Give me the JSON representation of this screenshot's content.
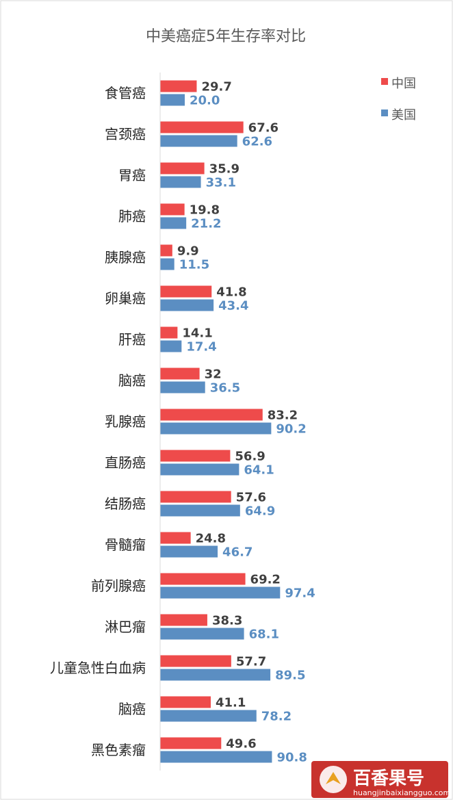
{
  "chart_data": {
    "type": "bar",
    "orientation": "horizontal",
    "title": "中美癌症5年生存率对比",
    "categories": [
      "食管癌",
      "宫颈癌",
      "胃癌",
      "肺癌",
      "胰腺癌",
      "卵巢癌",
      "肝癌",
      "脑癌",
      "乳腺癌",
      "直肠癌",
      "结肠癌",
      "骨髓瘤",
      "前列腺癌",
      "淋巴瘤",
      "儿童急性白血病",
      "脑癌",
      "黑色素瘤"
    ],
    "series": [
      {
        "name": "中国",
        "color": "#ee4b4b",
        "values": [
          29.7,
          67.6,
          35.9,
          19.8,
          9.9,
          41.8,
          14.1,
          32,
          83.2,
          56.9,
          57.6,
          24.8,
          69.2,
          38.3,
          57.7,
          41.1,
          49.6
        ],
        "labels": [
          "29.7",
          "67.6",
          "35.9",
          "19.8",
          "9.9",
          "41.8",
          "14.1",
          "32",
          "83.2",
          "56.9",
          "57.6",
          "24.8",
          "69.2",
          "38.3",
          "57.7",
          "41.1",
          "49.6"
        ]
      },
      {
        "name": "美国",
        "color": "#5b8ec2",
        "values": [
          20.0,
          62.6,
          33.1,
          21.2,
          11.5,
          43.4,
          17.4,
          36.5,
          90.2,
          64.1,
          64.9,
          46.7,
          97.4,
          68.1,
          89.5,
          78.2,
          90.8
        ],
        "labels": [
          "20.0",
          "62.6",
          "33.1",
          "21.2",
          "11.5",
          "43.4",
          "17.4",
          "36.5",
          "90.2",
          "64.1",
          "64.9",
          "46.7",
          "97.4",
          "68.1",
          "89.5",
          "78.2",
          "90.8"
        ]
      }
    ],
    "xlim": [
      0,
      100
    ],
    "grid": false,
    "legend_position": "top-right"
  },
  "watermark": {
    "name": "百香果号",
    "url": "huangjinbaixiangguo.com"
  }
}
